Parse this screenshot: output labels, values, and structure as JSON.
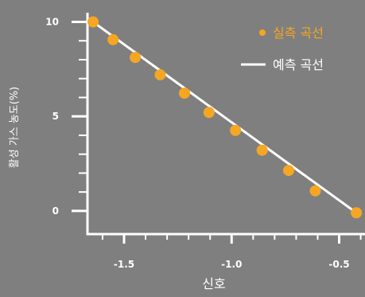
{
  "chart_data": {
    "type": "scatter",
    "title": "",
    "xlabel": "신호",
    "ylabel": "활성 가스 농도(%)",
    "xlim": [
      -1.67,
      -0.38
    ],
    "ylim": [
      -0.3,
      10.4
    ],
    "x_ticks": [
      {
        "value": -1.5,
        "label": "-1.5"
      },
      {
        "value": -1.0,
        "label": "-1.0"
      },
      {
        "value": -0.5,
        "label": "-0.5"
      }
    ],
    "y_ticks": [
      {
        "value": 0,
        "label": "0"
      },
      {
        "value": 5,
        "label": "5"
      },
      {
        "value": 10,
        "label": "10"
      }
    ],
    "legend_position": "top-right",
    "series": [
      {
        "name": "실측 곡선",
        "kind": "scatter",
        "color": "#f5a623",
        "x": [
          -1.644,
          -1.551,
          -1.448,
          -1.332,
          -1.219,
          -1.105,
          -0.982,
          -0.858,
          -0.735,
          -0.611,
          -0.42
        ],
        "y": [
          10.0,
          9.06,
          8.12,
          7.2,
          6.23,
          5.21,
          4.26,
          3.21,
          2.14,
          1.06,
          -0.1
        ]
      },
      {
        "name": "예측 곡선",
        "kind": "line",
        "color": "#ffffff",
        "x": [
          -1.644,
          -0.42
        ],
        "y": [
          10.0,
          -0.1
        ]
      }
    ]
  }
}
